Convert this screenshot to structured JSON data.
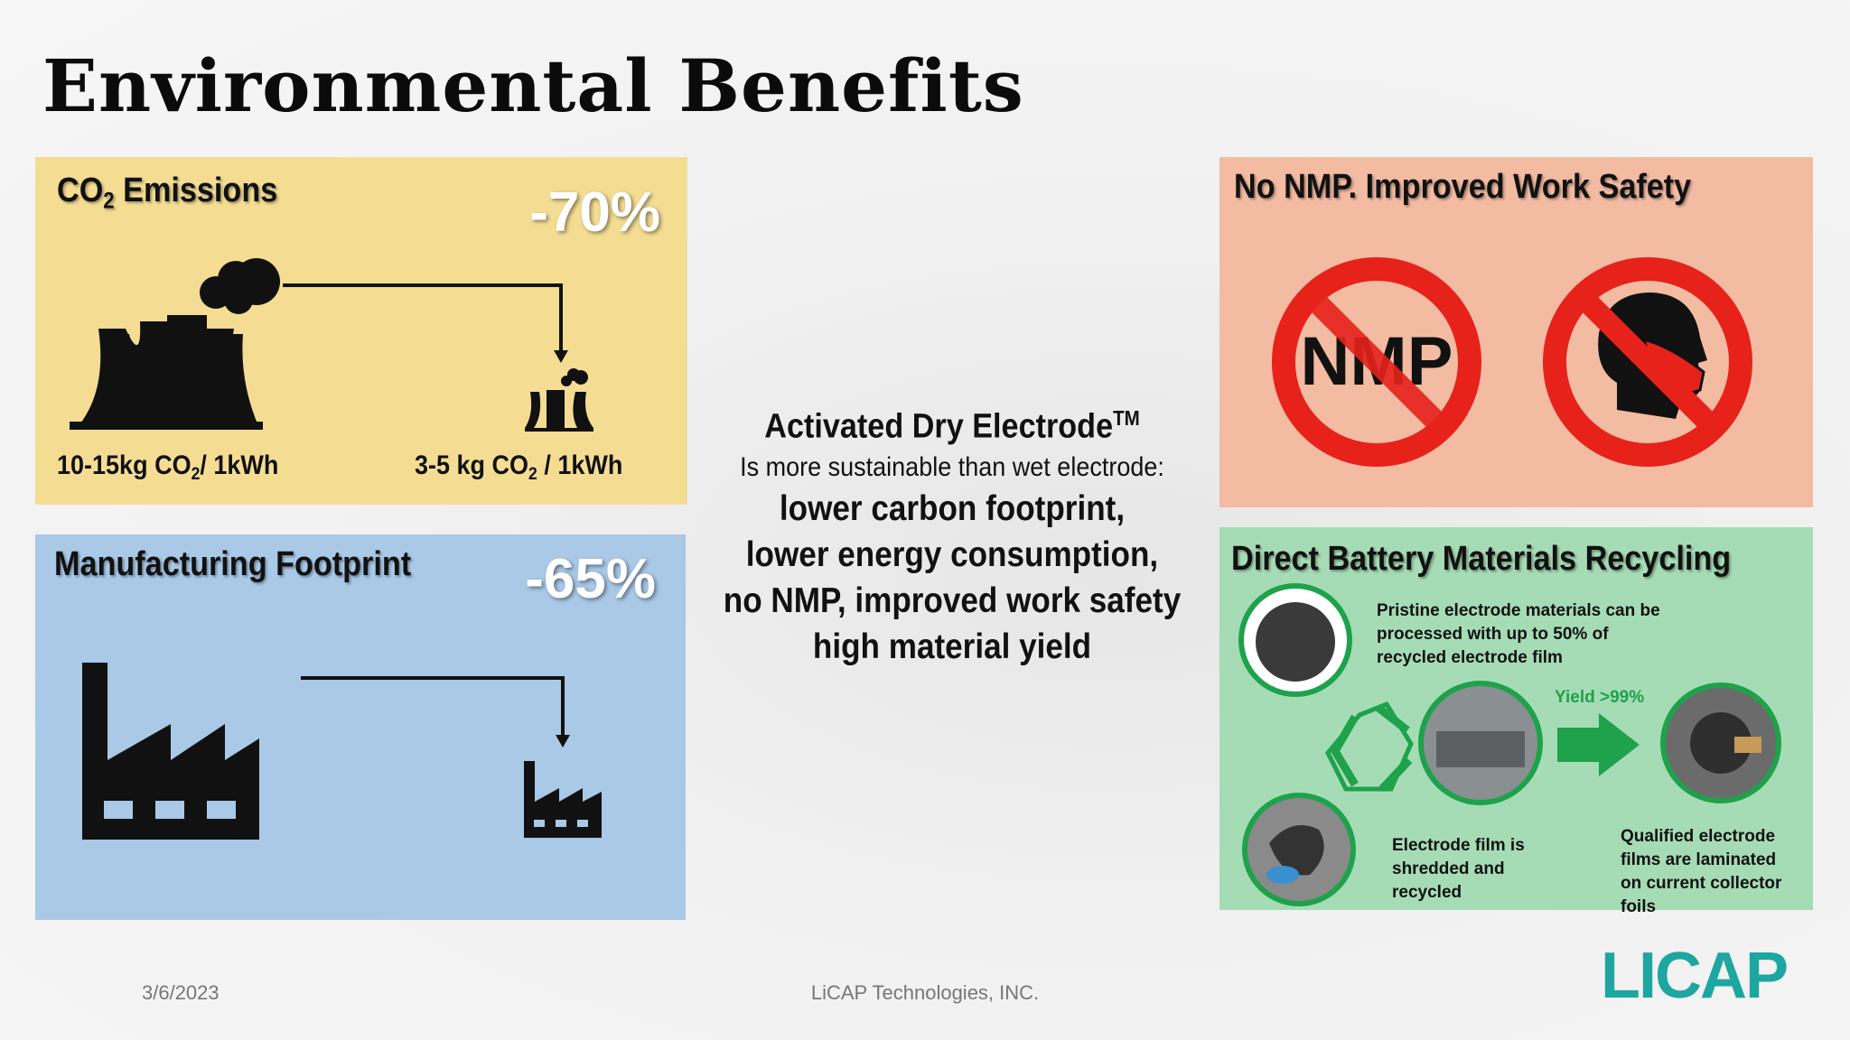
{
  "title": "Environmental Benefits",
  "panels": {
    "co2": {
      "title": [
        "CO",
        "2",
        " Emissions"
      ],
      "reduction": "-70%",
      "before": [
        "10-15kg CO",
        "2",
        "/ 1kWh"
      ],
      "after": [
        "3-5 kg CO",
        "2",
        " / 1kWh"
      ]
    },
    "footprint": {
      "title": "Manufacturing Footprint",
      "reduction": "-65%"
    },
    "nmp": {
      "title": "No NMP. Improved Work Safety",
      "icon_label": "NMP"
    },
    "recycling": {
      "title": "Direct Battery Materials Recycling",
      "step1": "Pristine electrode materials   can be processed with up to 50% of recycled electrode film",
      "yield": "Yield >99%",
      "step2": "Electrode film is shredded and recycled",
      "step3": "Qualified electrode films are laminated on current collector foils"
    }
  },
  "center": {
    "heading": [
      "Activated Dry Electrode",
      "TM"
    ],
    "subheading": "Is more sustainable than wet electrode:",
    "points": [
      "lower carbon footprint,",
      "lower energy consumption,",
      "no NMP, improved work safety",
      "high material yield"
    ]
  },
  "footer": {
    "date": "3/6/2023",
    "company": "LiCAP Technologies, INC.",
    "logo": "LICAP"
  }
}
